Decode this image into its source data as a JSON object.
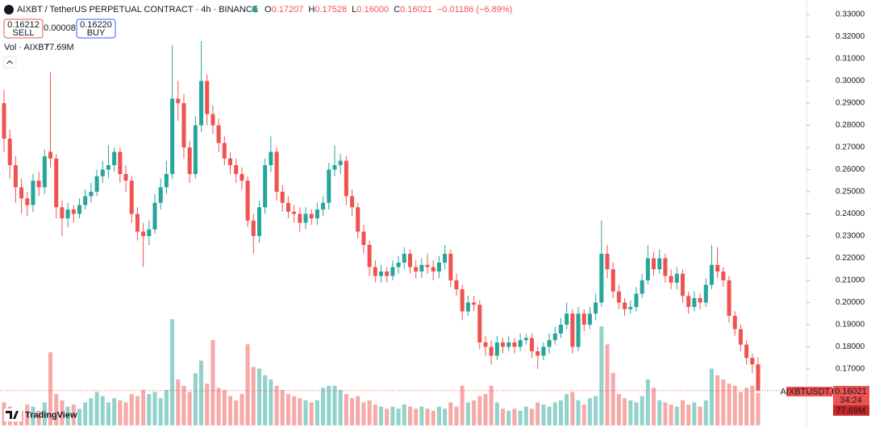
{
  "header": {
    "symbol": "AIXBT / TetherUS PERPETUAL CONTRACT · 4h · BINANCE",
    "o_label": "O",
    "open": "0.17207",
    "h_label": "H",
    "high": "0.17528",
    "l_label": "L",
    "low": "0.16000",
    "c_label": "C",
    "close": "0.16021",
    "change": "−0.01186 (−6.89%)"
  },
  "trade": {
    "sell_price": "0.16212",
    "sell_label": "SELL",
    "spread": "0.00008",
    "buy_price": "0.16220",
    "buy_label": "BUY"
  },
  "volume_legend": {
    "title": "Vol · AIXBT",
    "value": "77.69M"
  },
  "last_price_tag": {
    "symbol": "AIXBTUSDT.P",
    "price": "0.16021",
    "countdown": "34:24",
    "volume": "77.69M"
  },
  "logo": "TradingView",
  "chart_data": {
    "type": "candlestick",
    "up_color": "#26a69a",
    "down_color": "#ef5350",
    "grid": false,
    "ylim": [
      0.14382,
      0.33655
    ],
    "volume_lim": [
      0,
      270
    ],
    "yticks": [
      {
        "value": 0.33,
        "label": "0.33000"
      },
      {
        "value": 0.32,
        "label": "0.32000"
      },
      {
        "value": 0.31,
        "label": "0.31000"
      },
      {
        "value": 0.3,
        "label": "0.30000"
      },
      {
        "value": 0.29,
        "label": "0.29000"
      },
      {
        "value": 0.28,
        "label": "0.28000"
      },
      {
        "value": 0.27,
        "label": "0.27000"
      },
      {
        "value": 0.26,
        "label": "0.26000"
      },
      {
        "value": 0.25,
        "label": "0.25000"
      },
      {
        "value": 0.24,
        "label": "0.24000"
      },
      {
        "value": 0.23,
        "label": "0.23000"
      },
      {
        "value": 0.22,
        "label": "0.22000"
      },
      {
        "value": 0.21,
        "label": "0.21000"
      },
      {
        "value": 0.2,
        "label": "0.20000"
      },
      {
        "value": 0.19,
        "label": "0.19000"
      },
      {
        "value": 0.18,
        "label": "0.18000"
      },
      {
        "value": 0.17,
        "label": "0.17000"
      }
    ],
    "open": [
      0.29,
      0.274,
      0.262,
      0.252,
      0.247,
      0.244,
      0.255,
      0.252,
      0.268,
      0.265,
      0.243,
      0.238,
      0.242,
      0.24,
      0.244,
      0.248,
      0.25,
      0.257,
      0.26,
      0.262,
      0.268,
      0.258,
      0.255,
      0.24,
      0.232,
      0.23,
      0.233,
      0.245,
      0.252,
      0.258,
      0.292,
      0.29,
      0.27,
      0.258,
      0.28,
      0.3,
      0.285,
      0.28,
      0.272,
      0.265,
      0.262,
      0.258,
      0.255,
      0.237,
      0.23,
      0.243,
      0.262,
      0.268,
      0.25,
      0.245,
      0.241,
      0.24,
      0.236,
      0.24,
      0.238,
      0.242,
      0.245,
      0.26,
      0.262,
      0.264,
      0.248,
      0.243,
      0.232,
      0.226,
      0.216,
      0.212,
      0.214,
      0.212,
      0.216,
      0.218,
      0.222,
      0.216,
      0.214,
      0.217,
      0.216,
      0.214,
      0.218,
      0.222,
      0.21,
      0.206,
      0.196,
      0.2,
      0.199,
      0.182,
      0.18,
      0.176,
      0.182,
      0.18,
      0.182,
      0.18,
      0.183,
      0.184,
      0.178,
      0.176,
      0.18,
      0.183,
      0.186,
      0.19,
      0.195,
      0.18,
      0.195,
      0.19,
      0.195,
      0.2,
      0.222,
      0.215,
      0.205,
      0.2,
      0.197,
      0.198,
      0.204,
      0.21,
      0.22,
      0.215,
      0.22,
      0.212,
      0.209,
      0.213,
      0.203,
      0.198,
      0.202,
      0.2,
      0.208,
      0.217,
      0.214,
      0.21,
      0.194,
      0.188,
      0.181,
      0.175,
      0.17207
    ],
    "high": [
      0.296,
      0.278,
      0.266,
      0.256,
      0.25,
      0.258,
      0.259,
      0.269,
      0.304,
      0.267,
      0.246,
      0.245,
      0.244,
      0.247,
      0.251,
      0.254,
      0.26,
      0.264,
      0.271,
      0.27,
      0.27,
      0.262,
      0.257,
      0.243,
      0.236,
      0.237,
      0.249,
      0.256,
      0.264,
      0.316,
      0.3,
      0.294,
      0.273,
      0.284,
      0.318,
      0.303,
      0.289,
      0.283,
      0.275,
      0.268,
      0.265,
      0.261,
      0.257,
      0.24,
      0.246,
      0.265,
      0.275,
      0.27,
      0.253,
      0.248,
      0.244,
      0.243,
      0.243,
      0.242,
      0.245,
      0.248,
      0.263,
      0.271,
      0.267,
      0.266,
      0.251,
      0.245,
      0.235,
      0.228,
      0.219,
      0.217,
      0.216,
      0.219,
      0.221,
      0.225,
      0.224,
      0.219,
      0.22,
      0.222,
      0.219,
      0.221,
      0.226,
      0.224,
      0.213,
      0.208,
      0.203,
      0.203,
      0.201,
      0.185,
      0.183,
      0.185,
      0.184,
      0.185,
      0.184,
      0.186,
      0.186,
      0.186,
      0.18,
      0.182,
      0.186,
      0.189,
      0.193,
      0.2,
      0.197,
      0.198,
      0.197,
      0.198,
      0.204,
      0.237,
      0.226,
      0.218,
      0.208,
      0.202,
      0.201,
      0.207,
      0.213,
      0.226,
      0.223,
      0.224,
      0.222,
      0.215,
      0.216,
      0.215,
      0.205,
      0.205,
      0.204,
      0.211,
      0.226,
      0.225,
      0.216,
      0.212,
      0.196,
      0.19,
      0.183,
      0.177,
      0.17528
    ],
    "low": [
      0.268,
      0.256,
      0.245,
      0.24,
      0.239,
      0.241,
      0.248,
      0.249,
      0.261,
      0.238,
      0.23,
      0.234,
      0.236,
      0.238,
      0.242,
      0.245,
      0.248,
      0.254,
      0.256,
      0.259,
      0.254,
      0.25,
      0.236,
      0.228,
      0.216,
      0.226,
      0.231,
      0.242,
      0.249,
      0.256,
      0.282,
      0.265,
      0.254,
      0.256,
      0.277,
      0.28,
      0.276,
      0.268,
      0.262,
      0.258,
      0.254,
      0.251,
      0.234,
      0.222,
      0.227,
      0.24,
      0.259,
      0.246,
      0.241,
      0.238,
      0.236,
      0.232,
      0.233,
      0.235,
      0.235,
      0.239,
      0.242,
      0.257,
      0.258,
      0.244,
      0.239,
      0.229,
      0.222,
      0.212,
      0.209,
      0.209,
      0.209,
      0.21,
      0.213,
      0.215,
      0.213,
      0.211,
      0.211,
      0.213,
      0.21,
      0.211,
      0.215,
      0.207,
      0.203,
      0.192,
      0.194,
      0.196,
      0.179,
      0.176,
      0.172,
      0.174,
      0.177,
      0.178,
      0.177,
      0.178,
      0.181,
      0.175,
      0.17,
      0.174,
      0.177,
      0.181,
      0.184,
      0.188,
      0.177,
      0.178,
      0.187,
      0.188,
      0.192,
      0.198,
      0.211,
      0.202,
      0.197,
      0.194,
      0.195,
      0.196,
      0.202,
      0.208,
      0.212,
      0.213,
      0.209,
      0.206,
      0.206,
      0.2,
      0.195,
      0.196,
      0.197,
      0.198,
      0.206,
      0.211,
      0.207,
      0.191,
      0.185,
      0.178,
      0.172,
      0.168,
      0.16
    ],
    "close": [
      0.274,
      0.262,
      0.252,
      0.247,
      0.244,
      0.255,
      0.252,
      0.266,
      0.265,
      0.243,
      0.238,
      0.242,
      0.24,
      0.244,
      0.248,
      0.25,
      0.257,
      0.26,
      0.262,
      0.268,
      0.258,
      0.255,
      0.24,
      0.232,
      0.23,
      0.233,
      0.245,
      0.252,
      0.258,
      0.292,
      0.29,
      0.27,
      0.258,
      0.28,
      0.3,
      0.285,
      0.28,
      0.272,
      0.265,
      0.262,
      0.258,
      0.255,
      0.237,
      0.23,
      0.243,
      0.262,
      0.268,
      0.25,
      0.245,
      0.241,
      0.24,
      0.236,
      0.24,
      0.238,
      0.242,
      0.245,
      0.26,
      0.262,
      0.264,
      0.248,
      0.243,
      0.232,
      0.226,
      0.216,
      0.212,
      0.214,
      0.212,
      0.216,
      0.218,
      0.222,
      0.216,
      0.214,
      0.217,
      0.216,
      0.214,
      0.218,
      0.222,
      0.21,
      0.206,
      0.196,
      0.2,
      0.199,
      0.182,
      0.18,
      0.176,
      0.182,
      0.18,
      0.182,
      0.18,
      0.183,
      0.184,
      0.178,
      0.176,
      0.18,
      0.183,
      0.186,
      0.19,
      0.195,
      0.18,
      0.195,
      0.19,
      0.195,
      0.2,
      0.222,
      0.215,
      0.205,
      0.2,
      0.197,
      0.198,
      0.204,
      0.21,
      0.22,
      0.215,
      0.22,
      0.212,
      0.209,
      0.213,
      0.203,
      0.198,
      0.202,
      0.2,
      0.208,
      0.217,
      0.214,
      0.21,
      0.194,
      0.188,
      0.181,
      0.175,
      0.17207,
      0.16021
    ],
    "volume": [
      55,
      45,
      40,
      35,
      50,
      45,
      35,
      55,
      175,
      75,
      60,
      45,
      50,
      40,
      55,
      65,
      80,
      70,
      55,
      65,
      60,
      55,
      75,
      70,
      85,
      75,
      80,
      65,
      85,
      254,
      110,
      95,
      80,
      125,
      155,
      100,
      204,
      90,
      85,
      70,
      60,
      75,
      194,
      140,
      136,
      120,
      110,
      95,
      85,
      75,
      70,
      65,
      60,
      55,
      60,
      90,
      95,
      95,
      85,
      75,
      65,
      70,
      55,
      60,
      50,
      45,
      40,
      45,
      40,
      50,
      45,
      40,
      45,
      40,
      35,
      45,
      40,
      55,
      45,
      95,
      55,
      60,
      70,
      75,
      95,
      55,
      40,
      35,
      40,
      35,
      45,
      40,
      55,
      50,
      45,
      55,
      60,
      75,
      80,
      60,
      50,
      65,
      70,
      237,
      194,
      126,
      75,
      65,
      60,
      55,
      70,
      110,
      90,
      60,
      55,
      50,
      45,
      60,
      50,
      55,
      45,
      60,
      136,
      120,
      110,
      100,
      95,
      80,
      90,
      95,
      77.69
    ]
  }
}
